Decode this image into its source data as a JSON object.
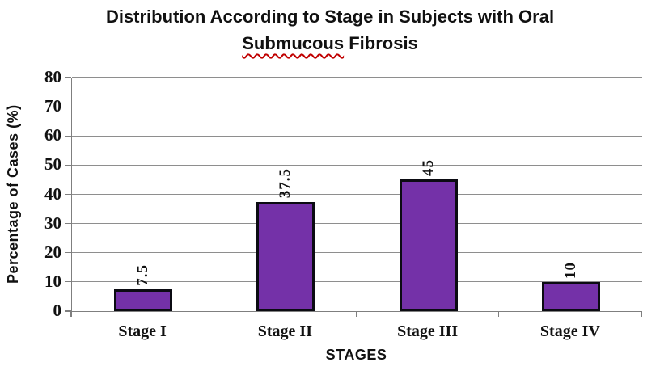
{
  "title": {
    "line1": "Distribution According to Stage in Subjects with Oral",
    "line2_word": "Submucous",
    "line2_rest": " Fibrosis"
  },
  "chart_data": {
    "type": "bar",
    "title": "Distribution According to Stage in Subjects with Oral Submucous Fibrosis",
    "categories": [
      "Stage I",
      "Stage II",
      "Stage III",
      "Stage IV"
    ],
    "values": [
      7.5,
      37.5,
      45,
      10
    ],
    "data_labels": [
      "7.5",
      "37.5",
      "45",
      "10"
    ],
    "xlabel": "STAGES",
    "ylabel": "Percentage of Cases (%)",
    "ylim": [
      0,
      80
    ],
    "yticks": [
      0,
      10,
      20,
      30,
      40,
      50,
      60,
      70,
      80
    ],
    "grid": true,
    "legend": false,
    "data_label_rotation_deg": -90,
    "colors": {
      "bar_fill": "#7431A8",
      "bar_border": "#0B0B12",
      "gridline": "#8E8E8E",
      "axis_line": "#7F7F7F",
      "text": "#111111",
      "spellcheck_underline": "#C00000"
    }
  }
}
